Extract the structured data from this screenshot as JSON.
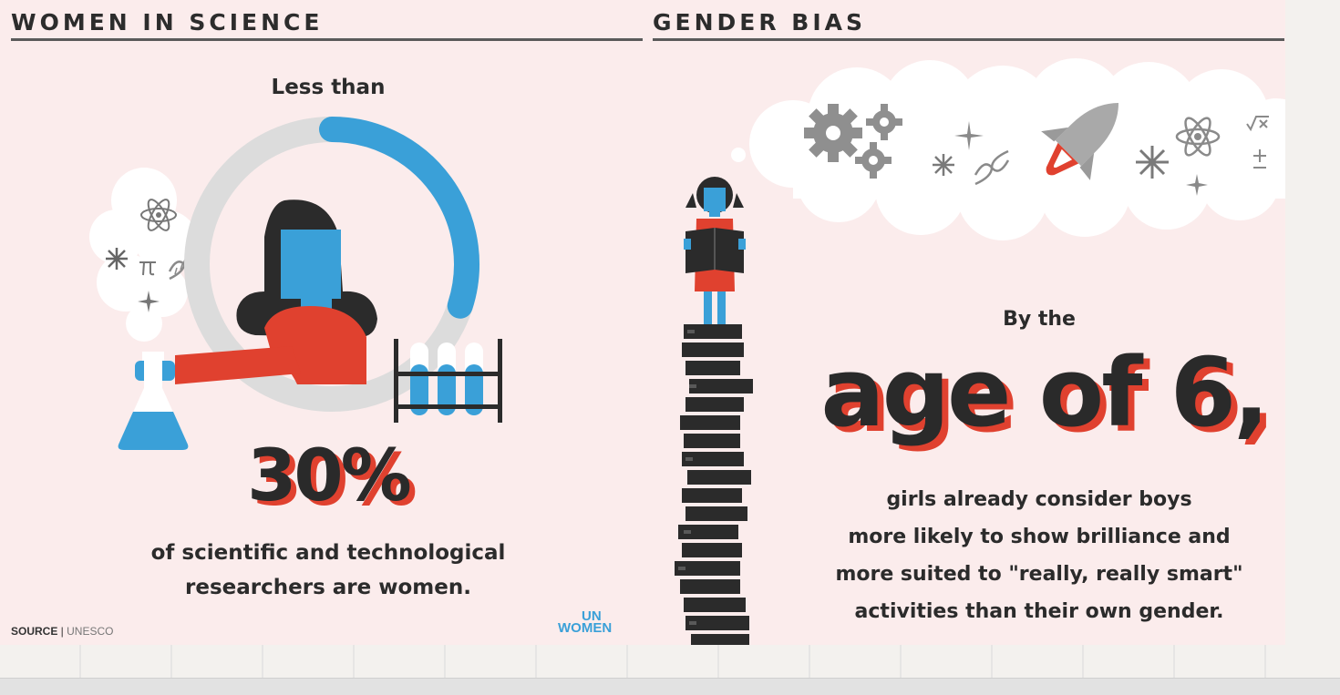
{
  "left_panel": {
    "heading": "WOMEN IN SCIENCE",
    "lead": "Less than",
    "stat": "30%",
    "description_line1": "of scientific and technological",
    "description_line2": "researchers are women.",
    "progress_ring_fraction": 0.3,
    "source_label": "SOURCE",
    "source_value": "UNESCO",
    "logo_line1": "UN",
    "logo_line2": "WOMEN"
  },
  "right_panel": {
    "heading": "GENDER BIAS",
    "lead": "By the",
    "stat": "age of 6,",
    "description_line1": "girls already consider boys",
    "description_line2": "more likely to show brilliance and",
    "description_line3": "more suited to \"really, really smart\"",
    "description_line4": "activities than their own gender."
  },
  "colors": {
    "background": "#fbecec",
    "accent_blue": "#3aa0d8",
    "accent_red": "#e0412f",
    "dark": "#2b2b2b",
    "ring_grey": "#dcdcdc"
  },
  "icons": [
    "atom-icon",
    "dna-icon",
    "pi-icon",
    "sparkle-icon",
    "gear-icon",
    "rocket-icon",
    "flask-icon",
    "test-tube-rack-icon",
    "math-symbols-icon"
  ]
}
